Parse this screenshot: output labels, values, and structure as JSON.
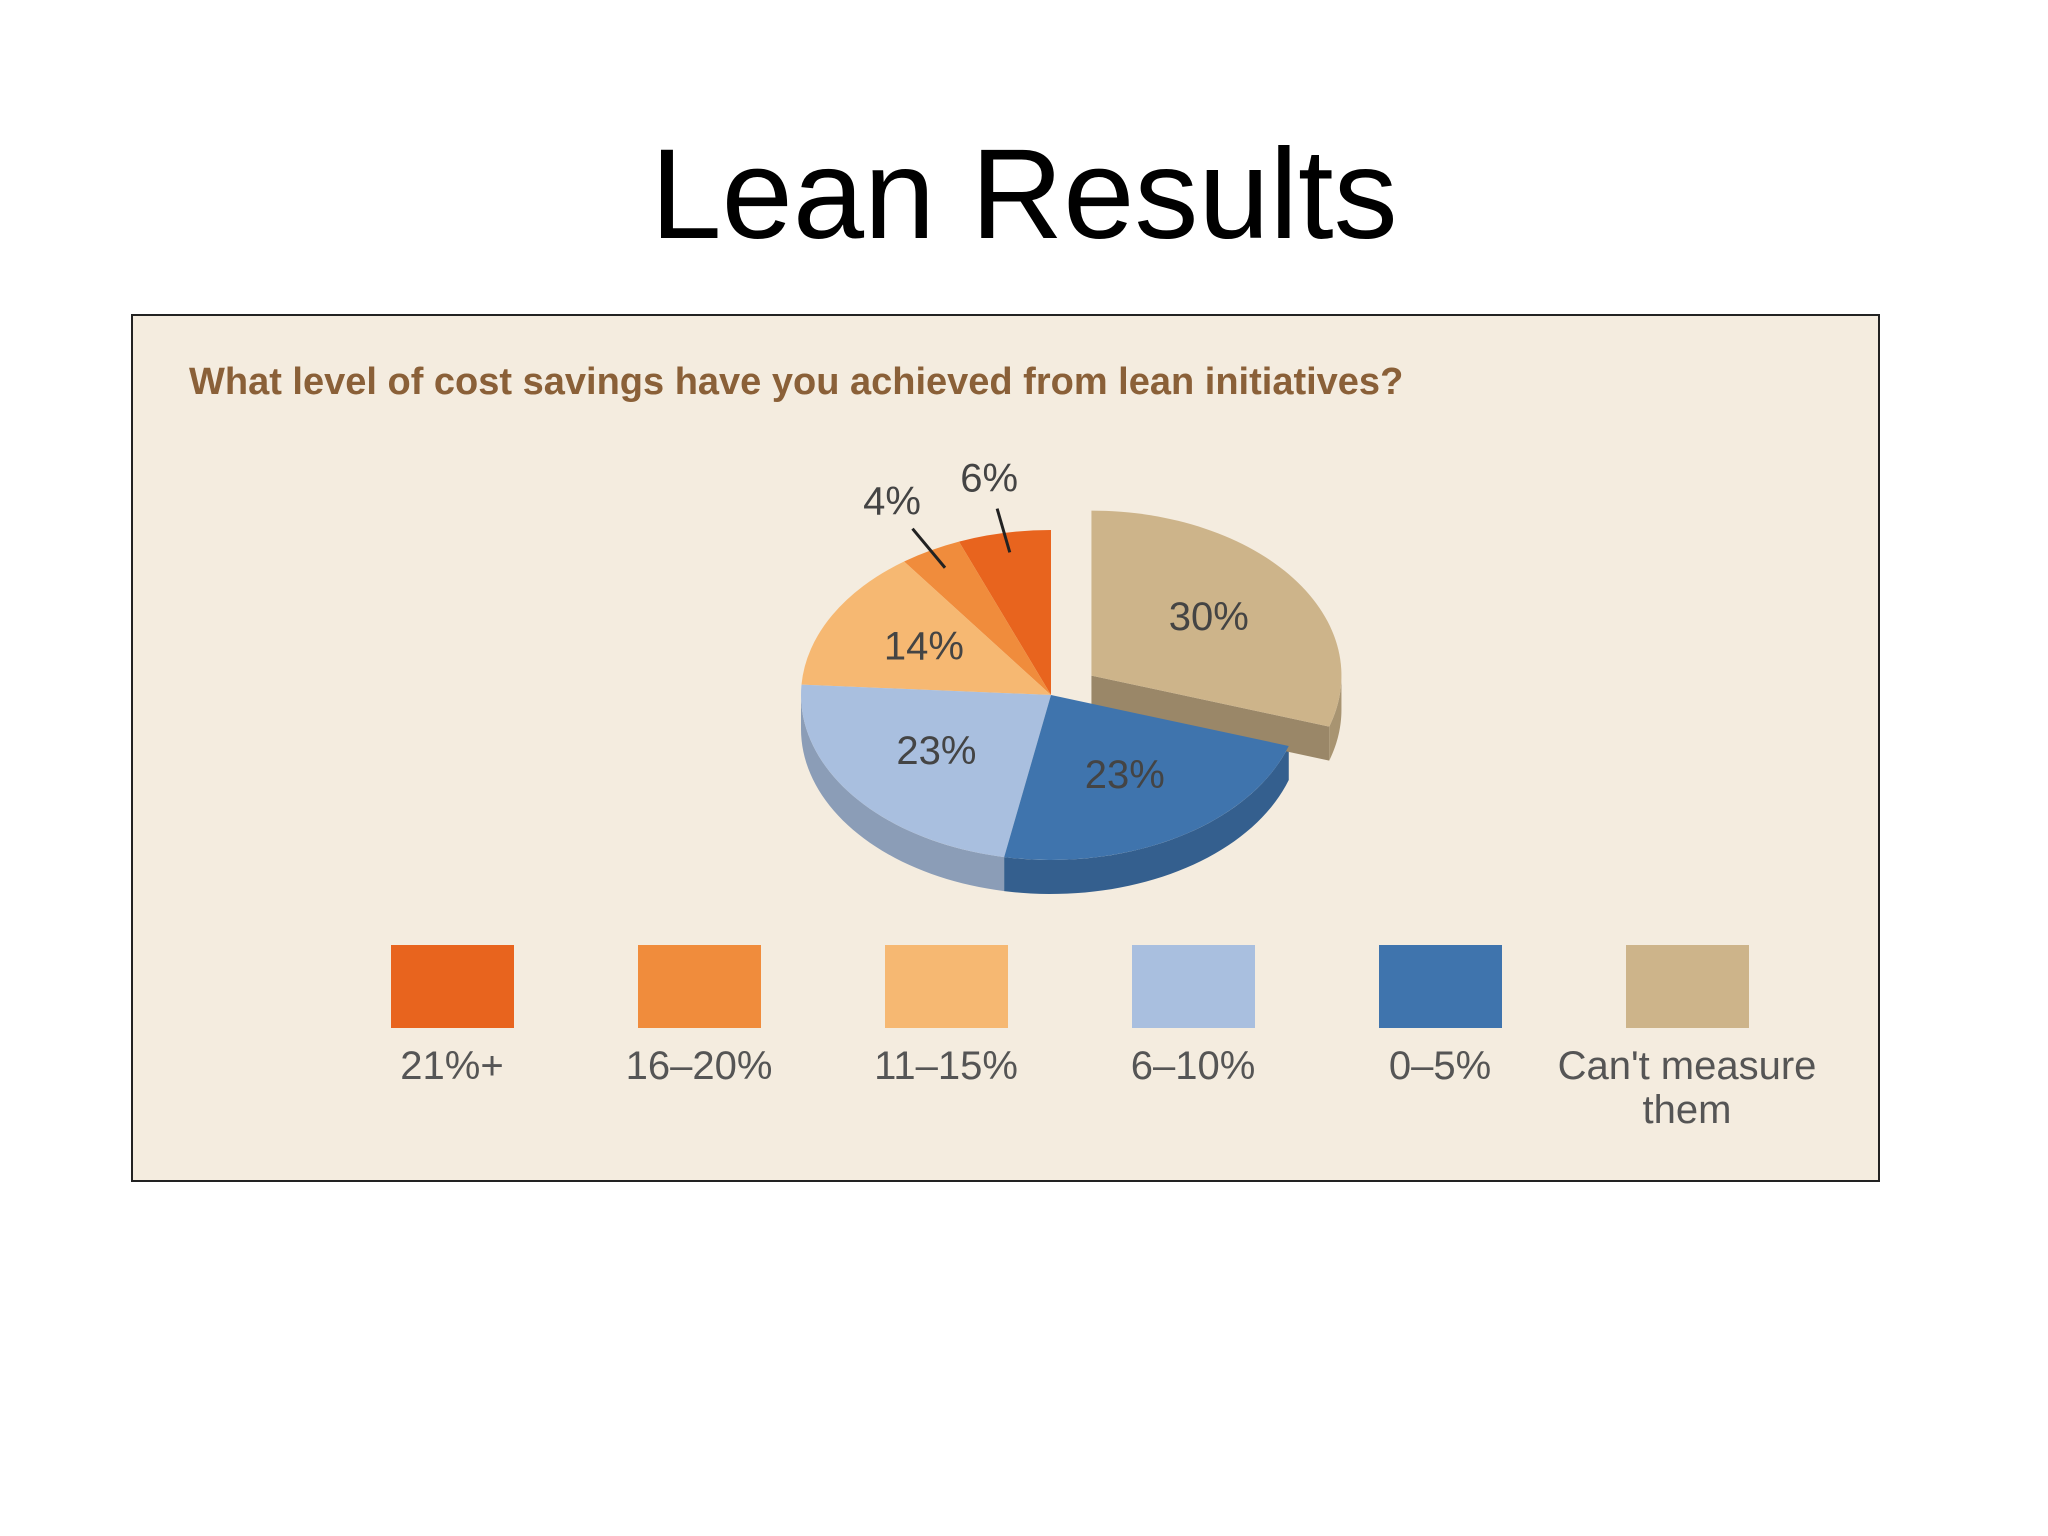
{
  "title": "Lean Results",
  "chart_data": {
    "type": "pie",
    "title": "What level of cost savings have you achieved from lean initiatives?",
    "categories": [
      "21%+",
      "16–20%",
      "11–15%",
      "6–10%",
      "0–5%",
      "Can't measure them"
    ],
    "values": [
      6,
      4,
      14,
      23,
      23,
      30
    ],
    "value_labels": [
      "6%",
      "4%",
      "14%",
      "23%",
      "23%",
      "30%"
    ],
    "colors": [
      "#e8641e",
      "#f08c3c",
      "#f6b872",
      "#a9bfdf",
      "#3f74ad",
      "#cdb48a"
    ],
    "exploded": [
      "Can't measure them"
    ]
  }
}
